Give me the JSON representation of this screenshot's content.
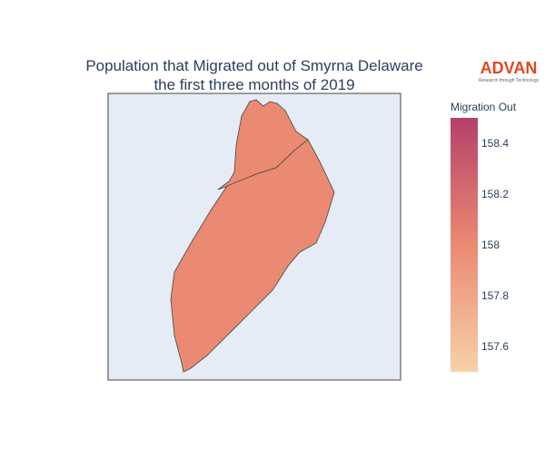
{
  "chart_data": {
    "type": "choropleth",
    "title": [
      "Population that Migrated out of Smyrna Delaware",
      "the first three months of 2019"
    ],
    "colorbar_title": "Migration Out",
    "values": [
      158,
      158
    ],
    "colorscale": [
      "#f6d1a5",
      "#eb8a72",
      "#b5406a"
    ],
    "clim": [
      157.5,
      158.5
    ],
    "cticks": [
      157.6,
      157.8,
      158,
      158.2,
      158.4
    ]
  },
  "logo": {
    "name": "ADVAN",
    "tagline": "Research through Technology"
  }
}
